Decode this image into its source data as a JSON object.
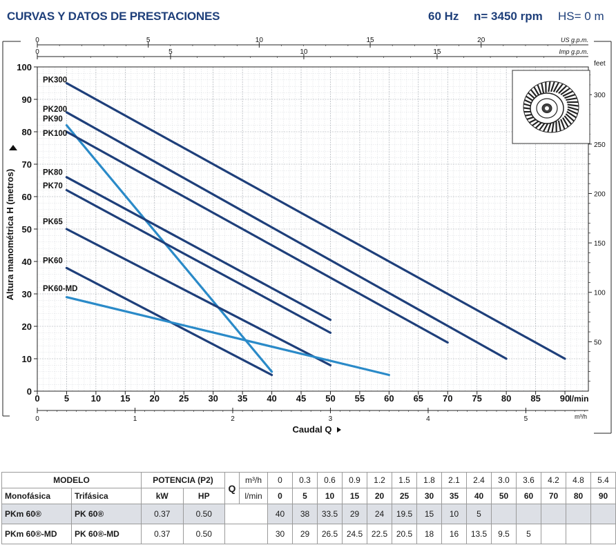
{
  "header": {
    "title": "CURVAS Y DATOS DE PRESTACIONES",
    "frequency": "60 Hz",
    "speed": "n= 3450 rpm",
    "hs": "HS= 0 m"
  },
  "chart_data": {
    "type": "line",
    "ylabel": "Altura manométrica H (metros)",
    "xlabel": "Caudal Q",
    "x_unit": "l/min",
    "y2_unit": "feet",
    "x2_unit": "m³/h",
    "top1_unit": "US g.p.m.",
    "top2_unit": "Imp g.p.m.",
    "xlim": [
      0,
      95
    ],
    "ylim": [
      0,
      100
    ],
    "grid": true,
    "x_ticks": [
      0,
      5,
      10,
      15,
      20,
      25,
      30,
      35,
      40,
      45,
      50,
      55,
      60,
      65,
      70,
      75,
      80,
      85,
      90
    ],
    "y_ticks": [
      0,
      10,
      20,
      30,
      40,
      50,
      60,
      70,
      80,
      90,
      100
    ],
    "feet_ticks": [
      50,
      100,
      150,
      200,
      250,
      300
    ],
    "m3h_ticks": [
      0,
      1,
      2,
      3,
      4,
      5
    ],
    "usgpm_ticks": [
      0,
      5,
      10,
      15,
      20
    ],
    "impgpm_ticks": [
      0,
      5,
      10,
      15
    ],
    "series": [
      {
        "name": "PK300",
        "color": "#1e3f7a",
        "x": [
          5,
          90
        ],
        "y": [
          95,
          10
        ]
      },
      {
        "name": "PK200",
        "color": "#1e3f7a",
        "x": [
          5,
          80
        ],
        "y": [
          86,
          10
        ]
      },
      {
        "name": "PK90",
        "color": "#2a8ac8",
        "x": [
          5,
          40
        ],
        "y": [
          82,
          6
        ]
      },
      {
        "name": "PK100",
        "color": "#1e3f7a",
        "x": [
          5,
          70
        ],
        "y": [
          80,
          15
        ]
      },
      {
        "name": "PK80",
        "color": "#1e3f7a",
        "x": [
          5,
          50
        ],
        "y": [
          66,
          22
        ]
      },
      {
        "name": "PK70",
        "color": "#1e3f7a",
        "x": [
          5,
          50
        ],
        "y": [
          62,
          18
        ]
      },
      {
        "name": "PK65",
        "color": "#1e3f7a",
        "x": [
          5,
          50
        ],
        "y": [
          50,
          8
        ]
      },
      {
        "name": "PK60",
        "color": "#1e3f7a",
        "x": [
          5,
          40
        ],
        "y": [
          38,
          5
        ]
      },
      {
        "name": "PK60-MD",
        "color": "#2a8ac8",
        "x": [
          5,
          60
        ],
        "y": [
          29,
          5
        ]
      }
    ]
  },
  "table": {
    "modelo": "MODELO",
    "potencia": "POTENCIA (P2)",
    "q": "Q",
    "monofasica": "Monofásica",
    "trifasica": "Trifásica",
    "kw": "kW",
    "hp": "HP",
    "m3h_unit": "m³/h",
    "lmin_unit": "l/min",
    "m3h": [
      "0",
      "0.3",
      "0.6",
      "0.9",
      "1.2",
      "1.5",
      "1.8",
      "2.1",
      "2.4",
      "3.0",
      "3.6",
      "4.2",
      "4.8",
      "5.4"
    ],
    "lmin": [
      "0",
      "5",
      "10",
      "15",
      "20",
      "25",
      "30",
      "35",
      "40",
      "50",
      "60",
      "70",
      "80",
      "90"
    ],
    "rows": [
      {
        "mono": "PKm 60®",
        "tri": "PK 60®",
        "kw": "0.37",
        "hp": "0.50",
        "h": [
          "40",
          "38",
          "33.5",
          "29",
          "24",
          "19.5",
          "15",
          "10",
          "5",
          "",
          "",
          "",
          "",
          ""
        ]
      },
      {
        "mono": "PKm 60®-MD",
        "tri": "PK 60®-MD",
        "kw": "0.37",
        "hp": "0.50",
        "h": [
          "30",
          "29",
          "26.5",
          "24.5",
          "22.5",
          "20.5",
          "18",
          "16",
          "13.5",
          "9.5",
          "5",
          "",
          "",
          ""
        ]
      }
    ]
  }
}
